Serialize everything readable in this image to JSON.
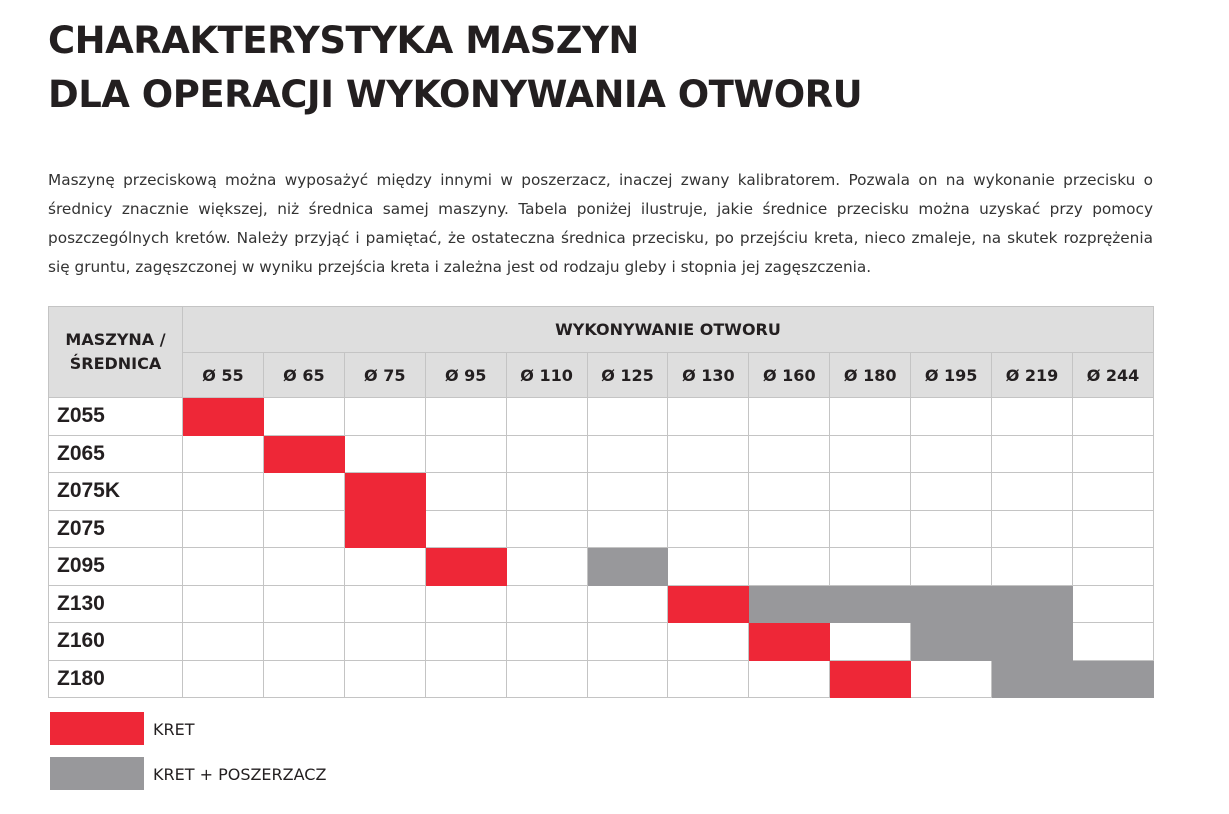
{
  "header": {
    "title": [
      "CHARAKTERYSTYKA MASZYN",
      "DLA OPERACJI WYKONYWANIA OTWORU"
    ],
    "paragraph": "Maszynę przeciskową można wyposażyć między innymi w poszerzacz, inaczej zwany kalibratorem. Pozwala on na wykonanie przecisku o średnicy znacznie większej, niż średnica samej maszyny. Tabela poniżej ilustruje, jakie średnice przecisku można uzyskać przy pomocy poszczególnych kretów. Należy przyjąć i pamiętać, że ostateczna średnica przecisku, po przejściu kreta, nieco zmaleje, na skutek rozprężenia się gruntu, zagęszczonej w wyniku przejścia kreta i zależna jest od rodzaju gleby i stopnia jej zagęszczenia."
  },
  "table": {
    "corner": "MASZYNA / ŚREDNICA",
    "group": "WYKONYWANIE OTWORU",
    "columns": [
      "Ø 55",
      "Ø 65",
      "Ø 75",
      "Ø 95",
      "Ø 110",
      "Ø 125",
      "Ø 130",
      "Ø 160",
      "Ø 180",
      "Ø 195",
      "Ø 219",
      "Ø 244"
    ],
    "rows": [
      {
        "name": "Z055",
        "cells": [
          "#ee2737",
          null,
          null,
          null,
          null,
          null,
          null,
          null,
          null,
          null,
          null,
          null
        ]
      },
      {
        "name": "Z065",
        "cells": [
          null,
          "#ee2737",
          null,
          null,
          null,
          null,
          null,
          null,
          null,
          null,
          null,
          null
        ]
      },
      {
        "name": "Z075K",
        "cells": [
          null,
          null,
          "#ee2737",
          null,
          null,
          null,
          null,
          null,
          null,
          null,
          null,
          null
        ]
      },
      {
        "name": "Z075",
        "cells": [
          null,
          null,
          "#ee2737",
          null,
          null,
          null,
          null,
          null,
          null,
          null,
          null,
          null
        ]
      },
      {
        "name": "Z095",
        "cells": [
          null,
          null,
          null,
          "#ee2737",
          null,
          "#98989b",
          null,
          null,
          null,
          null,
          null,
          null
        ]
      },
      {
        "name": "Z130",
        "cells": [
          null,
          null,
          null,
          null,
          null,
          null,
          "#ee2737",
          "#98989b",
          "#98989b",
          "#98989b",
          "#98989b",
          null
        ]
      },
      {
        "name": "Z160",
        "cells": [
          null,
          null,
          null,
          null,
          null,
          null,
          null,
          "#ee2737",
          null,
          "#98989b",
          "#98989b",
          null
        ]
      },
      {
        "name": "Z180",
        "cells": [
          null,
          null,
          null,
          null,
          null,
          null,
          null,
          null,
          "#ee2737",
          null,
          "#98989b",
          "#98989b"
        ]
      }
    ]
  },
  "legend": [
    {
      "label": "KRET",
      "color": "#ee2737"
    },
    {
      "label": "KRET + POSZERZACZ",
      "color": "#98989b"
    }
  ]
}
